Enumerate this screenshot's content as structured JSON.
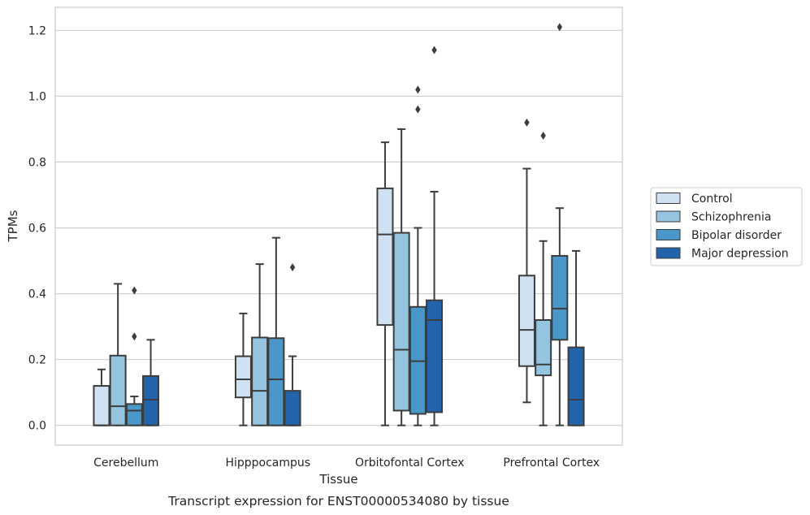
{
  "chart_data": {
    "type": "boxplot",
    "title": "",
    "caption": "Transcript expression for ENST00000534080 by tissue",
    "xlabel": "Tissue",
    "ylabel": "TPMs",
    "ylim": [
      -0.06,
      1.27
    ],
    "yticks": [
      0.0,
      0.2,
      0.4,
      0.6,
      0.8,
      1.0,
      1.2
    ],
    "ytick_labels": [
      "0.0",
      "0.2",
      "0.4",
      "0.6",
      "0.8",
      "1.0",
      "1.2"
    ],
    "grid": "horizontal",
    "legend_placement": "right",
    "categories": [
      "Cerebellum",
      "Hipppocampus",
      "Orbitofontal Cortex",
      "Prefrontal Cortex"
    ],
    "series": [
      {
        "name": "Control",
        "color": "#d0e1f2",
        "boxes": [
          {
            "whislo": 0.0,
            "q1": 0.0,
            "med": 0.0,
            "q3": 0.12,
            "whishi": 0.17,
            "fliers": []
          },
          {
            "whislo": 0.0,
            "q1": 0.085,
            "med": 0.14,
            "q3": 0.21,
            "whishi": 0.34,
            "fliers": []
          },
          {
            "whislo": 0.0,
            "q1": 0.305,
            "med": 0.58,
            "q3": 0.72,
            "whishi": 0.86,
            "fliers": []
          },
          {
            "whislo": 0.07,
            "q1": 0.18,
            "med": 0.29,
            "q3": 0.455,
            "whishi": 0.78,
            "fliers": [
              0.92
            ]
          }
        ]
      },
      {
        "name": "Schizophrenia",
        "color": "#94c4df",
        "boxes": [
          {
            "whislo": 0.0,
            "q1": 0.0,
            "med": 0.058,
            "q3": 0.212,
            "whishi": 0.43,
            "fliers": []
          },
          {
            "whislo": 0.0,
            "q1": 0.0,
            "med": 0.105,
            "q3": 0.267,
            "whishi": 0.49,
            "fliers": []
          },
          {
            "whislo": 0.0,
            "q1": 0.045,
            "med": 0.23,
            "q3": 0.585,
            "whishi": 0.9,
            "fliers": []
          },
          {
            "whislo": 0.0,
            "q1": 0.152,
            "med": 0.185,
            "q3": 0.32,
            "whishi": 0.56,
            "fliers": [
              0.88
            ]
          }
        ]
      },
      {
        "name": "Bipolar disorder",
        "color": "#4a98c9",
        "boxes": [
          {
            "whislo": 0.0,
            "q1": 0.0,
            "med": 0.045,
            "q3": 0.065,
            "whishi": 0.088,
            "fliers": [
              0.41,
              0.27
            ]
          },
          {
            "whislo": 0.0,
            "q1": 0.0,
            "med": 0.14,
            "q3": 0.265,
            "whishi": 0.57,
            "fliers": []
          },
          {
            "whislo": 0.0,
            "q1": 0.035,
            "med": 0.195,
            "q3": 0.36,
            "whishi": 0.6,
            "fliers": [
              1.02,
              0.96
            ]
          },
          {
            "whislo": 0.0,
            "q1": 0.26,
            "med": 0.355,
            "q3": 0.515,
            "whishi": 0.66,
            "fliers": [
              1.21
            ]
          }
        ]
      },
      {
        "name": "Major depression",
        "color": "#2164ab",
        "boxes": [
          {
            "whislo": 0.0,
            "q1": 0.0,
            "med": 0.078,
            "q3": 0.15,
            "whishi": 0.26,
            "fliers": []
          },
          {
            "whislo": 0.0,
            "q1": 0.0,
            "med": 0.0,
            "q3": 0.105,
            "whishi": 0.21,
            "fliers": [
              0.48
            ]
          },
          {
            "whislo": 0.0,
            "q1": 0.04,
            "med": 0.32,
            "q3": 0.38,
            "whishi": 0.71,
            "fliers": [
              1.14
            ]
          },
          {
            "whislo": 0.0,
            "q1": 0.0,
            "med": 0.078,
            "q3": 0.237,
            "whishi": 0.53,
            "fliers": []
          }
        ]
      }
    ]
  }
}
